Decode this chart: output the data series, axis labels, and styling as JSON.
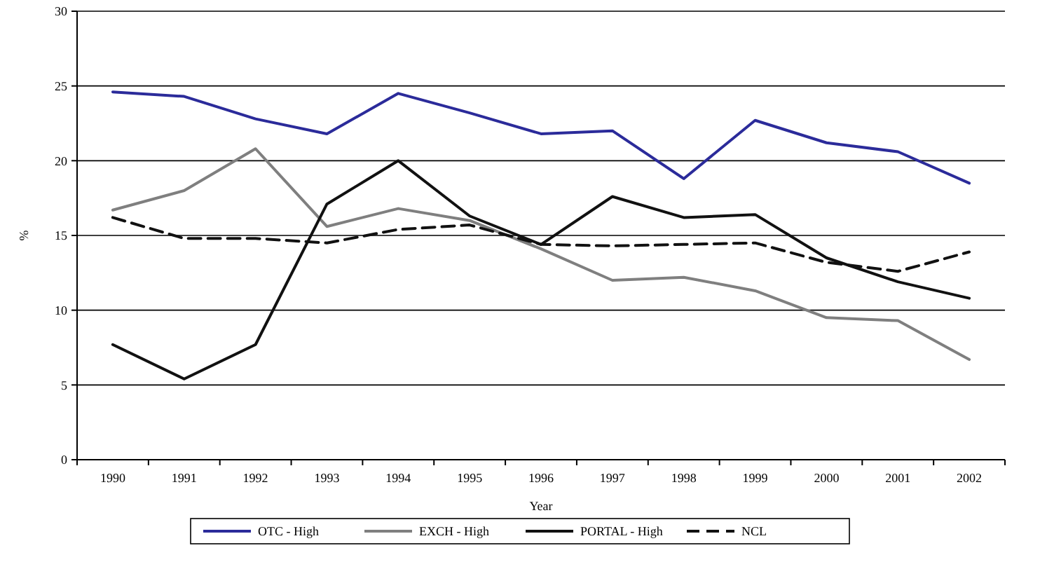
{
  "chart_data": {
    "type": "line",
    "xlabel": "Year",
    "ylabel": "%",
    "categories": [
      "1990",
      "1991",
      "1992",
      "1993",
      "1994",
      "1995",
      "1996",
      "1997",
      "1998",
      "1999",
      "2000",
      "2001",
      "2002"
    ],
    "ylim": [
      0,
      30
    ],
    "yticks": [
      0,
      5,
      10,
      15,
      20,
      25,
      30
    ],
    "grid": "y",
    "legend": "bottom",
    "marker": "none",
    "series": [
      {
        "name": "OTC - High",
        "color": "#2b2b9a",
        "line_style": "solid",
        "values": [
          24.6,
          24.3,
          22.8,
          21.8,
          24.5,
          23.2,
          21.8,
          22.0,
          18.8,
          22.7,
          21.2,
          20.6,
          18.5
        ]
      },
      {
        "name": "EXCH - High",
        "color": "#7f7f7f",
        "line_style": "solid",
        "values": [
          16.7,
          18.0,
          20.8,
          15.6,
          16.8,
          16.0,
          14.1,
          12.0,
          12.2,
          11.3,
          9.5,
          9.3,
          6.7
        ]
      },
      {
        "name": "PORTAL - High",
        "color": "#111111",
        "line_style": "solid",
        "values": [
          7.7,
          5.4,
          7.7,
          17.1,
          20.0,
          16.3,
          14.4,
          17.6,
          16.2,
          16.4,
          13.5,
          11.9,
          10.8
        ]
      },
      {
        "name": "NCL",
        "color": "#111111",
        "line_style": "dashed",
        "values": [
          16.2,
          14.8,
          14.8,
          14.5,
          15.4,
          15.7,
          14.4,
          14.3,
          14.4,
          14.5,
          13.2,
          12.6,
          13.9
        ]
      }
    ]
  }
}
